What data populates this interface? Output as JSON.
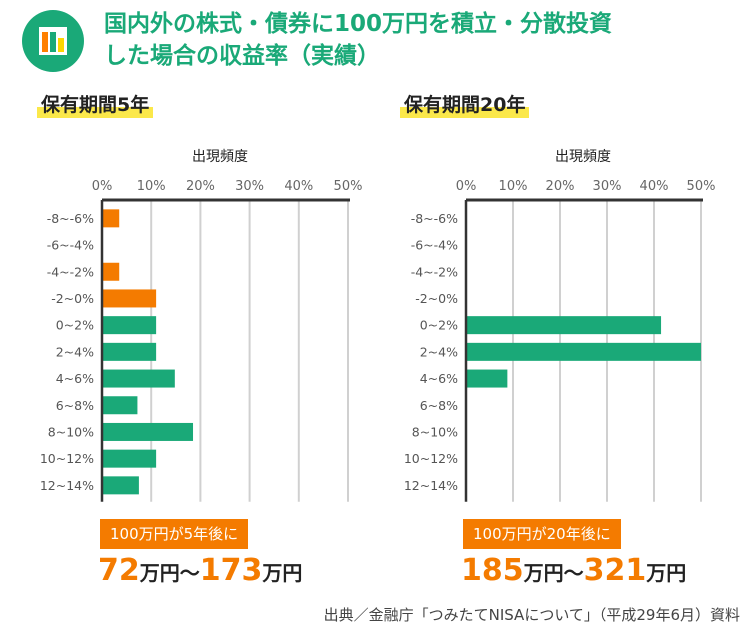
{
  "header": {
    "title_line1": "国内外の株式・債券に100万円を積立・分散投資",
    "title_line2": "した場合の収益率（実績）",
    "icon": "bar-chart-icon",
    "icon_colors": [
      "#ff7f00",
      "#1aa978",
      "#ffd600"
    ]
  },
  "colors": {
    "negative": "#f47b00",
    "positive": "#1aa978",
    "accent": "#f47b00",
    "highlight": "#fbe84a"
  },
  "chart_data": [
    {
      "type": "bar",
      "orientation": "horizontal",
      "title": "保有期間5年",
      "xlabel": "出現頻度",
      "x_ticks": [
        "0%",
        "10%",
        "20%",
        "30%",
        "40%",
        "50%"
      ],
      "xlim": [
        0,
        50
      ],
      "grid": true,
      "categories": [
        "-8~-6%",
        "-6~-4%",
        "-4~-2%",
        "-2~0%",
        "0~2%",
        "2~4%",
        "4~6%",
        "6~8%",
        "8~10%",
        "10~12%",
        "12~14%"
      ],
      "values": [
        3.5,
        0,
        3.5,
        11,
        11,
        11,
        14.8,
        7.2,
        18.5,
        11,
        7.5
      ],
      "result_label": "100万円が5年後に",
      "result_low": "72",
      "result_high": "173",
      "unit": "万円",
      "separator": "〜"
    },
    {
      "type": "bar",
      "orientation": "horizontal",
      "title": "保有期間20年",
      "xlabel": "出現頻度",
      "x_ticks": [
        "0%",
        "10%",
        "20%",
        "30%",
        "40%",
        "50%"
      ],
      "xlim": [
        0,
        50
      ],
      "grid": true,
      "categories": [
        "-8~-6%",
        "-6~-4%",
        "-4~-2%",
        "-2~0%",
        "0~2%",
        "2~4%",
        "4~6%",
        "6~8%",
        "8~10%",
        "10~12%",
        "12~14%"
      ],
      "values": [
        0,
        0,
        0,
        0,
        41.5,
        50,
        8.8,
        0,
        0,
        0,
        0
      ],
      "result_label": "100万円が20年後に",
      "result_low": "185",
      "result_high": "321",
      "unit": "万円",
      "separator": "〜"
    }
  ],
  "source": "出典／金融庁「つみたてNISAについて」（平成29年6月）資料"
}
